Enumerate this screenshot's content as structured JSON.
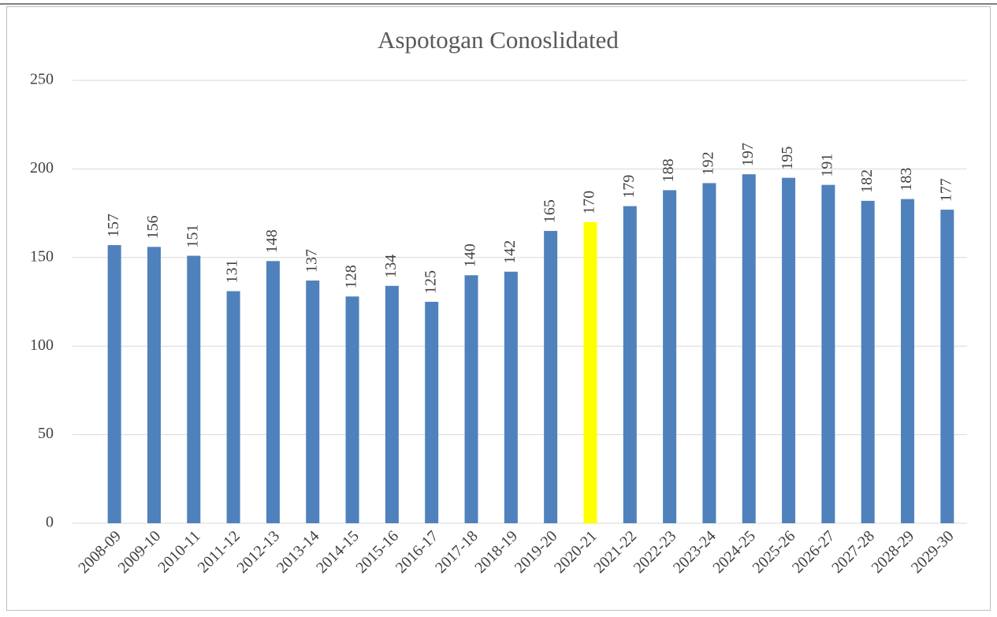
{
  "chart_data": {
    "type": "bar",
    "title": "Aspotogan Conoslidated",
    "categories": [
      "2008-09",
      "2009-10",
      "2010-11",
      "2011-12",
      "2012-13",
      "2013-14",
      "2014-15",
      "2015-16",
      "2016-17",
      "2017-18",
      "2018-19",
      "2019-20",
      "2020-21",
      "2021-22",
      "2022-23",
      "2023-24",
      "2024-25",
      "2025-26",
      "2026-27",
      "2027-28",
      "2028-29",
      "2029-30"
    ],
    "values": [
      157,
      156,
      151,
      131,
      148,
      137,
      128,
      134,
      125,
      140,
      142,
      165,
      170,
      179,
      188,
      192,
      197,
      195,
      191,
      182,
      183,
      177
    ],
    "colors": [
      "#4f81bd",
      "#4f81bd",
      "#4f81bd",
      "#4f81bd",
      "#4f81bd",
      "#4f81bd",
      "#4f81bd",
      "#4f81bd",
      "#4f81bd",
      "#4f81bd",
      "#4f81bd",
      "#4f81bd",
      "#ffff00",
      "#4f81bd",
      "#4f81bd",
      "#4f81bd",
      "#4f81bd",
      "#4f81bd",
      "#4f81bd",
      "#4f81bd",
      "#4f81bd",
      "#4f81bd"
    ],
    "ylim": [
      0,
      250
    ],
    "yticks": [
      0,
      50,
      100,
      150,
      200,
      250
    ],
    "grid": true
  }
}
